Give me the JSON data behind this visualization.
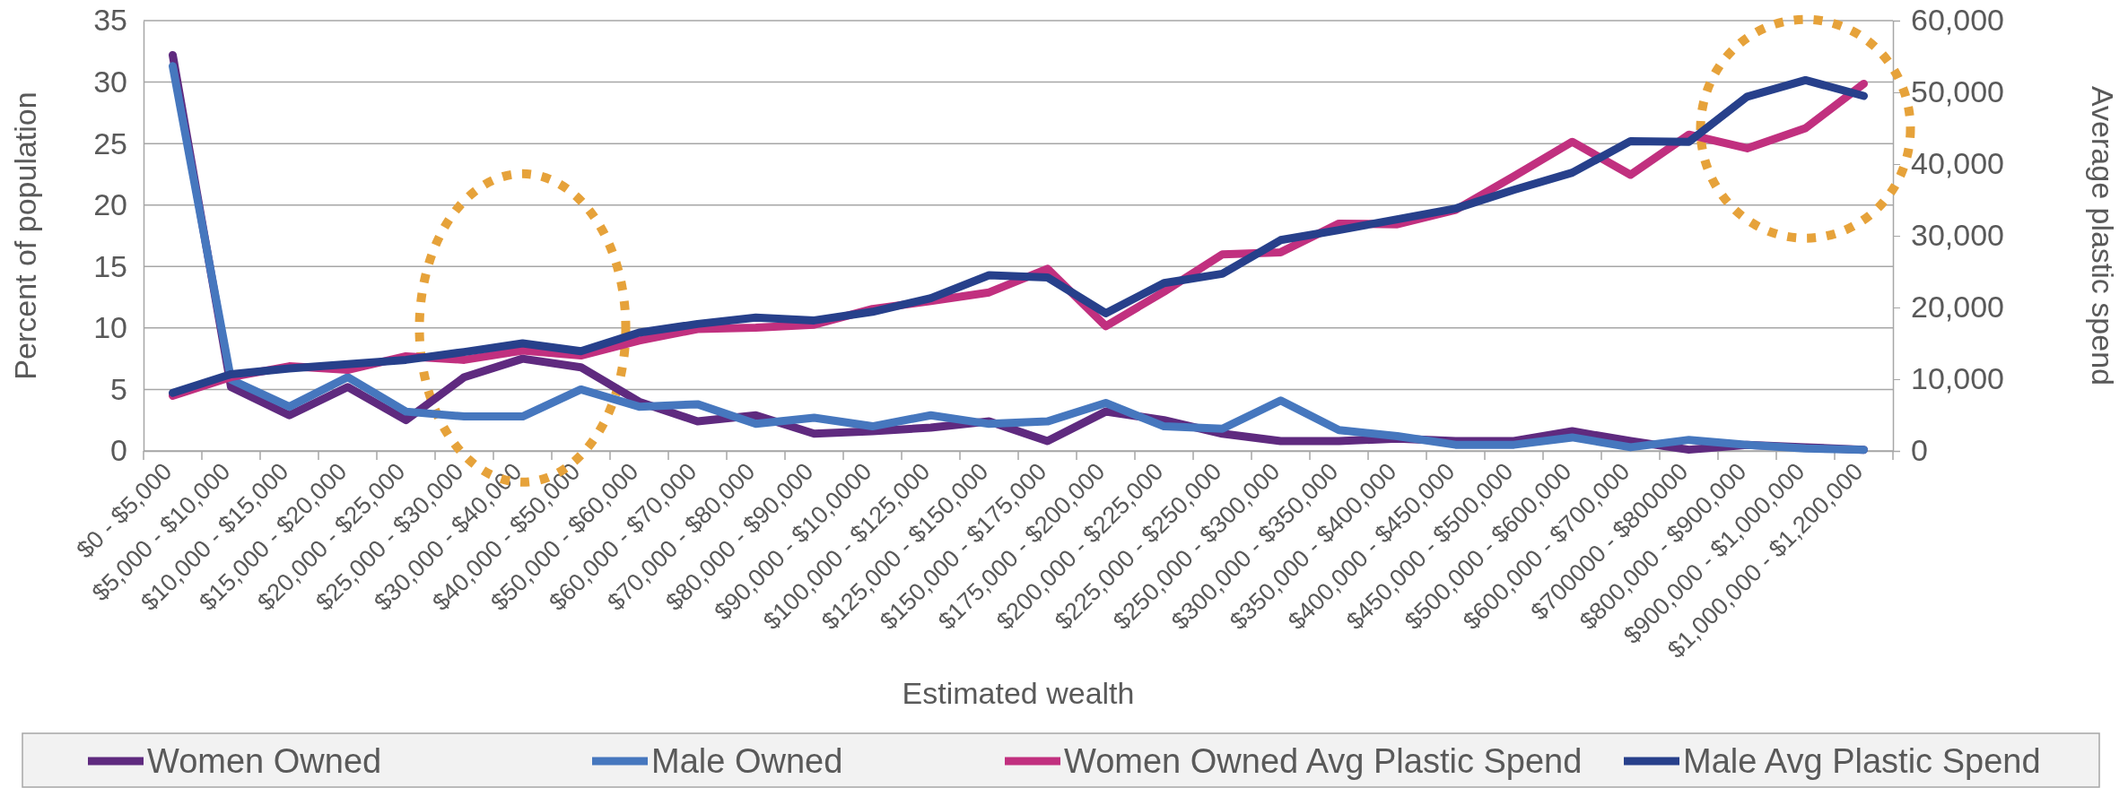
{
  "chart_data": {
    "type": "line",
    "xlabel": "Estimated wealth",
    "ylabel": "Percent of population",
    "y2label": "Average plastic spend",
    "categories": [
      "$0 - $5,000",
      "$5,000 - $10,000",
      "$10,000 - $15,000",
      "$15,000 - $20,000",
      "$20,000 - $25,000",
      "$25,000 - $30,000",
      "$30,000 - $40,000",
      "$40,000 - $50,000",
      "$50,000 - $60,000",
      "$60,000 - $70,000",
      "$70,000 - $80,000",
      "$80,000 - $90,000",
      "$90,000 - $10,0000",
      "$100,000 - $125,000",
      "$125,000 - $150,000",
      "$150,000 - $175,000",
      "$175,000 - $200,000",
      "$200,000 - $225,000",
      "$225,000 - $250,000",
      "$250,000 - $300,000",
      "$300,000 - $350,000",
      "$350,000 - $400,000",
      "$400,000 - $450,000",
      "$450,000 - $500,000",
      "$500,000 - $600,000",
      "$600,000 - $700,000",
      "$700000 - $800000",
      "$800,000 - $900,000",
      "$900,000 - $1,000,000",
      "$1,000,000 - $1,200,000"
    ],
    "series": [
      {
        "name": "Women Owned",
        "color": "#5f2a7f",
        "values": [
          32.2,
          5.2,
          2.9,
          5.2,
          2.5,
          6.0,
          7.5,
          6.8,
          4.0,
          2.4,
          2.9,
          1.4,
          1.6,
          1.9,
          2.4,
          0.8,
          3.2,
          2.5,
          1.4,
          0.8,
          0.8,
          1.0,
          0.8,
          0.8,
          1.6,
          0.8,
          0.1,
          0.5,
          0.3,
          0.1
        ]
      },
      {
        "name": "Male Owned",
        "color": "#4677be",
        "values": [
          31.3,
          5.8,
          3.6,
          6.0,
          3.2,
          2.8,
          2.8,
          5.0,
          3.6,
          3.8,
          2.2,
          2.7,
          2.0,
          2.9,
          2.2,
          2.4,
          3.9,
          2.0,
          1.8,
          4.1,
          1.7,
          1.2,
          0.5,
          0.5,
          1.1,
          0.3,
          0.9,
          0.5,
          0.2,
          0.1
        ]
      },
      {
        "name": "Women Owned Avg Plastic Spend",
        "color": "#c1307f",
        "axis": "y2",
        "values": [
          7700,
          10300,
          11800,
          11300,
          13200,
          12700,
          14000,
          13300,
          15400,
          17000,
          17200,
          17600,
          19800,
          20900,
          22100,
          25400,
          17400,
          22200,
          27400,
          27700,
          31700,
          31600,
          33600,
          38300,
          43100,
          38500,
          44100,
          42200,
          45000,
          51200
        ]
      },
      {
        "name": "Male Avg Plastic Spend",
        "color": "#27408b",
        "axis": "y2",
        "values": [
          8100,
          10700,
          11500,
          12100,
          12700,
          13800,
          15000,
          13900,
          16500,
          17700,
          18600,
          18200,
          19400,
          21300,
          24500,
          24200,
          19200,
          23400,
          24700,
          29400,
          30800,
          32300,
          33800,
          36400,
          38800,
          43200,
          43100,
          49400,
          51700,
          49500
        ]
      }
    ],
    "ylim": [
      0,
      35
    ],
    "yticks": [
      0,
      5,
      10,
      15,
      20,
      25,
      30,
      35
    ],
    "y2lim": [
      0,
      60000
    ],
    "y2ticks": [
      {
        "value": 0,
        "label": "0"
      },
      {
        "value": 10000,
        "label": "10,000"
      },
      {
        "value": 20000,
        "label": "20,000"
      },
      {
        "value": 30000,
        "label": "30,000"
      },
      {
        "value": 40000,
        "label": "40,000"
      },
      {
        "value": 50000,
        "label": "50,000"
      },
      {
        "value": 60000,
        "label": "60,000"
      }
    ],
    "grid": "y",
    "legend": "bottom",
    "marker": "none",
    "line_style": "solid"
  }
}
